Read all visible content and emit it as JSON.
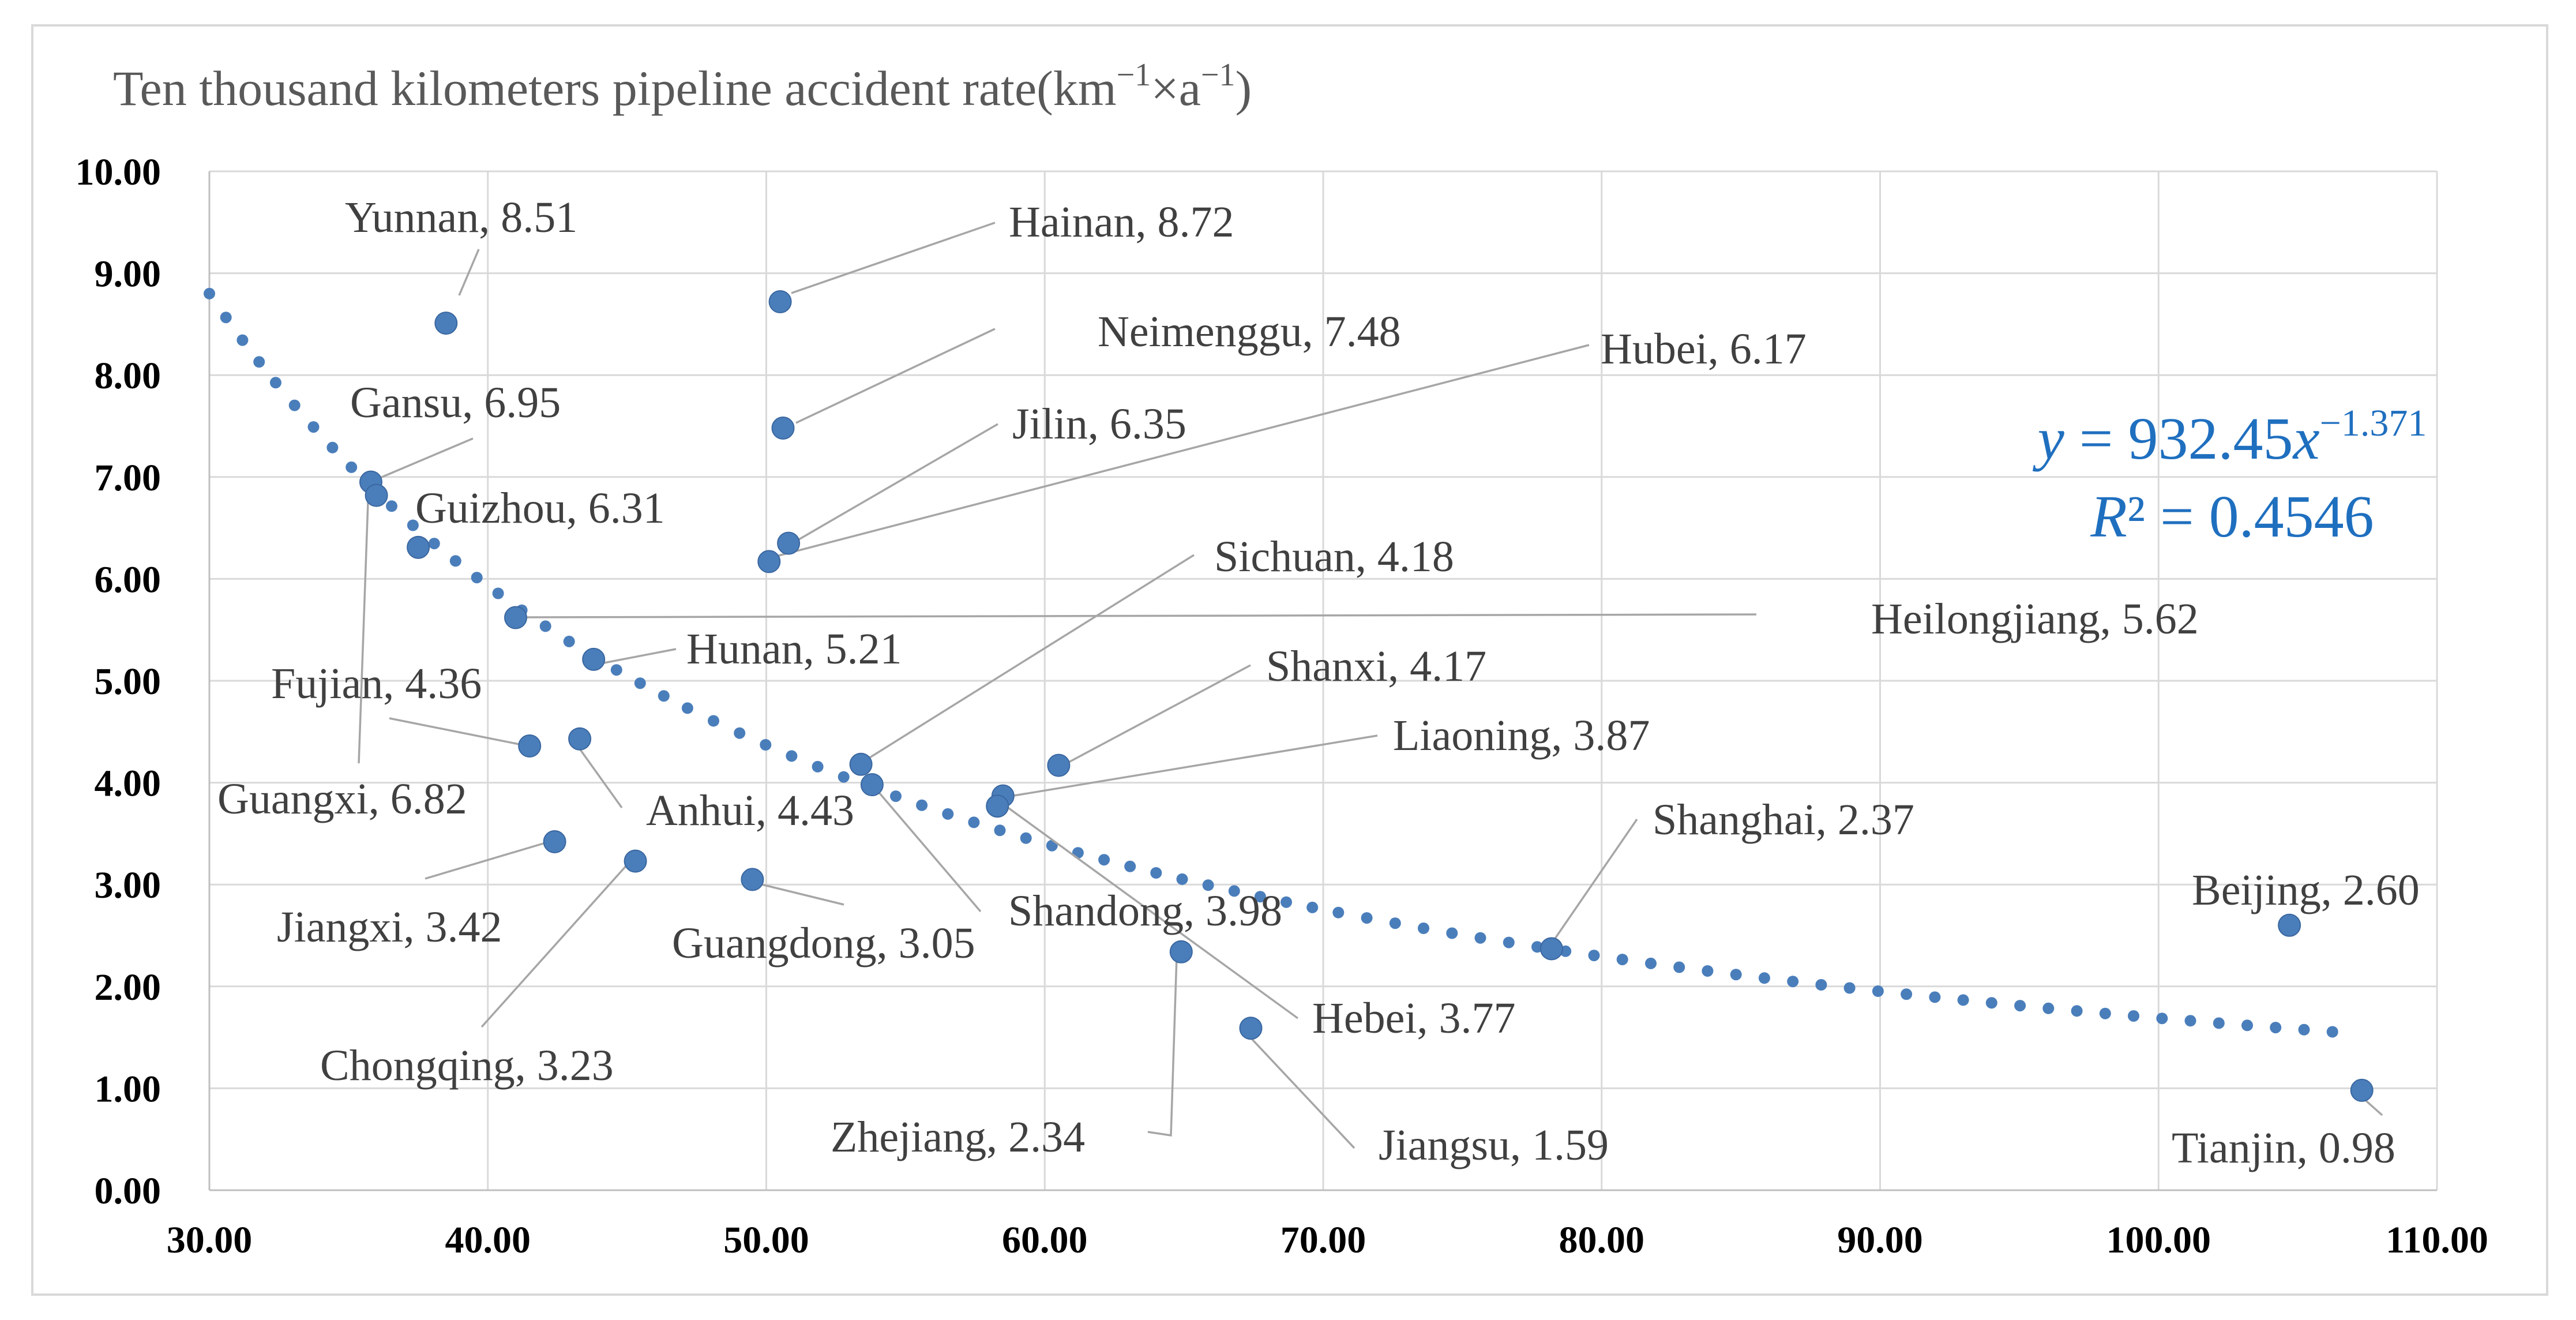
{
  "chart_data": {
    "type": "scatter",
    "title": "Ten thousand kilometers pipeline accident rate(km−1×a−1)",
    "title_parts": {
      "main": "Ten thousand kilometers pipeline accident rate(km",
      "sup1": "−1",
      "mid": "×a",
      "sup2": "−1",
      "end": ")"
    },
    "xlabel": "",
    "ylabel": "",
    "xlim": [
      30,
      110
    ],
    "ylim": [
      0,
      10
    ],
    "x_ticks": [
      "30.00",
      "40.00",
      "50.00",
      "60.00",
      "70.00",
      "80.00",
      "90.00",
      "100.00",
      "110.00"
    ],
    "y_ticks": [
      "0.00",
      "1.00",
      "2.00",
      "3.00",
      "4.00",
      "5.00",
      "6.00",
      "7.00",
      "8.00",
      "9.00",
      "10.00"
    ],
    "colors": {
      "points": "#4a7ebb",
      "trend": "#4a7ebb",
      "equation": "#1f6fbf",
      "labels": "#404040",
      "leaders": "#a6a6a6"
    },
    "points": [
      {
        "name": "Yunnan",
        "x": 38.5,
        "y": 8.51,
        "label": "Yunnan, 8.51"
      },
      {
        "name": "Hainan",
        "x": 50.5,
        "y": 8.72,
        "label": "Hainan, 8.72"
      },
      {
        "name": "Neimenggu",
        "x": 50.6,
        "y": 7.48,
        "label": "Neimenggu, 7.48"
      },
      {
        "name": "Hubei",
        "x": 50.1,
        "y": 6.17,
        "label": "Hubei, 6.17"
      },
      {
        "name": "Jilin",
        "x": 50.8,
        "y": 6.35,
        "label": "Jilin, 6.35"
      },
      {
        "name": "Gansu",
        "x": 35.8,
        "y": 6.95,
        "label": "Gansu, 6.95"
      },
      {
        "name": "Guizhou",
        "x": 37.5,
        "y": 6.31,
        "label": "Guizhou, 6.31"
      },
      {
        "name": "Guangxi",
        "x": 36.0,
        "y": 6.82,
        "label": "Guangxi, 6.82"
      },
      {
        "name": "Heilongjiang",
        "x": 41.0,
        "y": 5.62,
        "label": "Heilongjiang, 5.62"
      },
      {
        "name": "Hunan",
        "x": 43.8,
        "y": 5.21,
        "label": "Hunan, 5.21"
      },
      {
        "name": "Sichuan",
        "x": 53.4,
        "y": 4.18,
        "label": "Sichuan, 4.18"
      },
      {
        "name": "Shanxi",
        "x": 60.5,
        "y": 4.17,
        "label": "Shanxi, 4.17"
      },
      {
        "name": "Fujian",
        "x": 41.5,
        "y": 4.36,
        "label": "Fujian, 4.36"
      },
      {
        "name": "Anhui",
        "x": 43.3,
        "y": 4.43,
        "label": "Anhui, 4.43"
      },
      {
        "name": "Liaoning",
        "x": 58.5,
        "y": 3.87,
        "label": "Liaoning, 3.87"
      },
      {
        "name": "Shandong",
        "x": 53.8,
        "y": 3.98,
        "label": "Shandong, 3.98"
      },
      {
        "name": "Hebei",
        "x": 58.3,
        "y": 3.77,
        "label": "Hebei, 3.77"
      },
      {
        "name": "Jiangxi",
        "x": 42.4,
        "y": 3.42,
        "label": "Jiangxi, 3.42"
      },
      {
        "name": "Chongqing",
        "x": 45.3,
        "y": 3.23,
        "label": "Chongqing, 3.23"
      },
      {
        "name": "Guangdong",
        "x": 49.5,
        "y": 3.05,
        "label": "Guangdong, 3.05"
      },
      {
        "name": "Shanghai",
        "x": 78.2,
        "y": 2.37,
        "label": "Shanghai, 2.37"
      },
      {
        "name": "Zhejiang",
        "x": 64.9,
        "y": 2.34,
        "label": "Zhejiang, 2.34"
      },
      {
        "name": "Jiangsu",
        "x": 67.4,
        "y": 1.59,
        "label": "Jiangsu, 1.59"
      },
      {
        "name": "Beijing",
        "x": 104.7,
        "y": 2.6,
        "label": "Beijing, 2.60"
      },
      {
        "name": "Tianjin",
        "x": 107.3,
        "y": 0.98,
        "label": "Tianjin, 0.98"
      }
    ],
    "trendline": {
      "type": "power",
      "a": 932.45,
      "b": -1.371,
      "x_range": [
        30,
        106.5
      ],
      "equation_parts": {
        "y": "y",
        "eq": " = 932.45",
        "x": "x",
        "exp": "−1.371"
      },
      "r2_parts": {
        "r": "R",
        "rest": "² = 0.4546"
      }
    }
  }
}
